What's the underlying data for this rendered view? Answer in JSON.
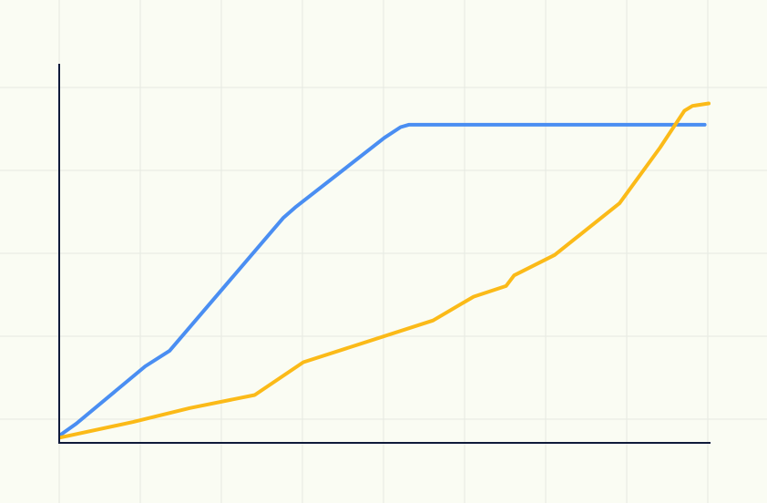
{
  "background": "#fafcf3",
  "grid_color": "#e6e9e1",
  "axis_color": "#0f1a3a",
  "chart_data": {
    "type": "line",
    "title": "",
    "xlabel": "",
    "ylabel": "",
    "grid": true,
    "legend": "none",
    "x_ticks": [
      0,
      1,
      2,
      3,
      4,
      5,
      6,
      7,
      8
    ],
    "y_ticks": [
      0,
      1,
      2,
      3,
      4
    ],
    "xlim": [
      0,
      8
    ],
    "ylim": [
      0,
      4.25
    ],
    "series": [
      {
        "color": "#4a8ef2",
        "points": [
          [
            0,
            0.05
          ],
          [
            0.2,
            0.19
          ],
          [
            1.05,
            0.89
          ],
          [
            1.35,
            1.08
          ],
          [
            2.75,
            2.7
          ],
          [
            2.9,
            2.83
          ],
          [
            4.0,
            3.68
          ],
          [
            4.2,
            3.81
          ],
          [
            4.3,
            3.84
          ],
          [
            7.95,
            3.84
          ]
        ]
      },
      {
        "color": "#fbba18",
        "points": [
          [
            0,
            0.02
          ],
          [
            0.9,
            0.21
          ],
          [
            1.6,
            0.38
          ],
          [
            2.4,
            0.54
          ],
          [
            3.0,
            0.94
          ],
          [
            4.6,
            1.45
          ],
          [
            5.1,
            1.74
          ],
          [
            5.5,
            1.87
          ],
          [
            5.6,
            2.0
          ],
          [
            6.1,
            2.25
          ],
          [
            6.9,
            2.88
          ],
          [
            7.4,
            3.56
          ],
          [
            7.7,
            4.01
          ],
          [
            7.8,
            4.07
          ],
          [
            8.0,
            4.1
          ]
        ]
      }
    ]
  }
}
